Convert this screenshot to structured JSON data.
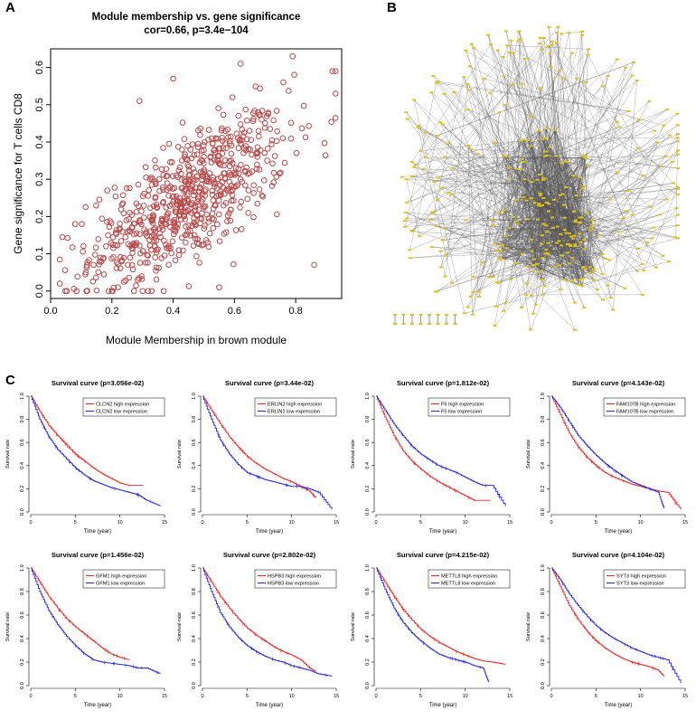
{
  "panels": {
    "a": "A",
    "b": "B",
    "c": "C"
  },
  "colors": {
    "scatter_point": "#b84a4a",
    "high": "#ee2222",
    "low": "#2222dd",
    "node": "#e0c21a",
    "edge": "#555555"
  },
  "chart_data": [
    {
      "type": "scatter",
      "title": "Module membership vs. gene significance",
      "subtitle": "cor=0.66, p=3.4e−104",
      "xlabel": "Module Membership in brown module",
      "ylabel": "Gene significance for  T cells CD8",
      "xlim": [
        0.0,
        0.95
      ],
      "ylim": [
        -0.02,
        0.65
      ],
      "xticks": [
        "0.0",
        "0.2",
        "0.4",
        "0.6",
        "0.8"
      ],
      "yticks": [
        "0.0",
        "0.1",
        "0.2",
        "0.3",
        "0.4",
        "0.5",
        "0.6"
      ],
      "n_points": 700,
      "correlation": 0.66,
      "trend": {
        "intercept": 0.03,
        "slope": 0.48,
        "x_mean": 0.45,
        "x_sd": 0.16
      },
      "sample_points": [
        {
          "x": 0.03,
          "y": 0.02
        },
        {
          "x": 0.08,
          "y": 0.18
        },
        {
          "x": 0.14,
          "y": 0.07
        },
        {
          "x": 0.29,
          "y": 0.51
        },
        {
          "x": 0.4,
          "y": 0.57
        },
        {
          "x": 0.62,
          "y": 0.61
        },
        {
          "x": 0.79,
          "y": 0.63
        },
        {
          "x": 0.92,
          "y": 0.59
        },
        {
          "x": 0.93,
          "y": 0.53
        },
        {
          "x": 0.86,
          "y": 0.07
        },
        {
          "x": 0.55,
          "y": 0.01
        },
        {
          "x": 0.22,
          "y": 0.01
        }
      ]
    },
    {
      "type": "network",
      "panel": "B",
      "description_nodes": 380,
      "isolated_pairs": 8
    },
    {
      "type": "line",
      "title": "Survival curve (p=3.056e-02)",
      "xlabel": "Time (year)",
      "ylabel": "Survival rate",
      "xlim": [
        0,
        15
      ],
      "ylim": [
        0,
        1
      ],
      "xticks": [
        "0",
        "5",
        "10",
        "15"
      ],
      "yticks": [
        "0.0",
        "0.2",
        "0.4",
        "0.6",
        "0.8",
        "1.0"
      ],
      "series": [
        {
          "name": "CLCN2 high expression",
          "color": "high",
          "x": [
            0,
            1,
            2,
            3,
            4,
            5,
            6,
            7,
            8,
            9,
            10,
            11,
            12.6
          ],
          "y": [
            1.0,
            0.87,
            0.75,
            0.66,
            0.58,
            0.5,
            0.44,
            0.38,
            0.33,
            0.29,
            0.25,
            0.23,
            0.23
          ]
        },
        {
          "name": "CLCN2 low expression",
          "color": "low",
          "x": [
            0,
            1,
            2,
            3,
            4,
            5,
            6,
            7,
            8,
            9,
            10,
            11,
            12,
            13,
            14.5
          ],
          "y": [
            1.0,
            0.8,
            0.65,
            0.54,
            0.46,
            0.38,
            0.32,
            0.27,
            0.24,
            0.21,
            0.19,
            0.17,
            0.15,
            0.1,
            0.05
          ]
        }
      ]
    },
    {
      "type": "line",
      "title": "Survival curve (p=3.44e-02)",
      "xlabel": "Time (year)",
      "ylabel": "Survival rate",
      "xlim": [
        0,
        15
      ],
      "ylim": [
        0,
        1
      ],
      "xticks": [
        "0",
        "5",
        "10",
        "15"
      ],
      "yticks": [
        "0.0",
        "0.2",
        "0.4",
        "0.6",
        "0.8",
        "1.0"
      ],
      "series": [
        {
          "name": "ERLIN2 high expression",
          "color": "high",
          "x": [
            0,
            1,
            2,
            3,
            4,
            5,
            6,
            7,
            8,
            9,
            10,
            11,
            12,
            12.7
          ],
          "y": [
            1.0,
            0.88,
            0.76,
            0.65,
            0.56,
            0.48,
            0.42,
            0.37,
            0.33,
            0.29,
            0.26,
            0.22,
            0.18,
            0.12
          ]
        },
        {
          "name": "ERLIN2 low expression",
          "color": "low",
          "x": [
            0,
            1,
            2,
            3,
            4,
            5,
            6,
            7,
            8,
            9,
            10,
            11,
            12,
            13,
            14.5
          ],
          "y": [
            1.0,
            0.8,
            0.62,
            0.5,
            0.41,
            0.34,
            0.31,
            0.28,
            0.26,
            0.24,
            0.22,
            0.22,
            0.2,
            0.17,
            0.02
          ]
        }
      ]
    },
    {
      "type": "line",
      "title": "Survival curve (p=1.812e-02)",
      "xlabel": "Time (year)",
      "ylabel": "Survival rate",
      "xlim": [
        0,
        15
      ],
      "ylim": [
        0,
        1
      ],
      "xticks": [
        "0",
        "5",
        "10",
        "15"
      ],
      "yticks": [
        "0.0",
        "0.2",
        "0.4",
        "0.6",
        "0.8",
        "1.0"
      ],
      "series": [
        {
          "name": "F5 high expression",
          "color": "high",
          "x": [
            0,
            1,
            2,
            3,
            4,
            5,
            6,
            7,
            8,
            9,
            10,
            11,
            12.8
          ],
          "y": [
            1.0,
            0.82,
            0.66,
            0.53,
            0.44,
            0.37,
            0.31,
            0.26,
            0.22,
            0.18,
            0.14,
            0.1,
            0.1
          ]
        },
        {
          "name": "F5 low expression",
          "color": "low",
          "x": [
            0,
            1,
            2,
            3,
            4,
            5,
            6,
            7,
            8,
            9,
            10,
            11,
            12,
            13,
            14.5
          ],
          "y": [
            1.0,
            0.88,
            0.76,
            0.66,
            0.57,
            0.5,
            0.45,
            0.4,
            0.37,
            0.34,
            0.3,
            0.26,
            0.23,
            0.23,
            0.05
          ]
        }
      ]
    },
    {
      "type": "line",
      "title": "Survival curve (p=4.143e-02)",
      "xlabel": "Time (year)",
      "ylabel": "Survival rate",
      "xlim": [
        0,
        15
      ],
      "ylim": [
        0,
        1
      ],
      "xticks": [
        "0",
        "5",
        "10",
        "15"
      ],
      "yticks": [
        "0.0",
        "0.2",
        "0.4",
        "0.6",
        "0.8",
        "1.0"
      ],
      "series": [
        {
          "name": "FAM107B high expression",
          "color": "high",
          "x": [
            0,
            1,
            2,
            3,
            4,
            5,
            6,
            7,
            8,
            9,
            10,
            11,
            12,
            13,
            14.5
          ],
          "y": [
            1.0,
            0.84,
            0.68,
            0.56,
            0.47,
            0.4,
            0.34,
            0.3,
            0.27,
            0.24,
            0.22,
            0.2,
            0.18,
            0.17,
            0.02
          ]
        },
        {
          "name": "FAM107B low expression",
          "color": "low",
          "x": [
            0,
            1,
            2,
            3,
            4,
            5,
            6,
            7,
            8,
            9,
            10,
            11,
            12,
            12.6
          ],
          "y": [
            1.0,
            0.9,
            0.78,
            0.66,
            0.57,
            0.49,
            0.42,
            0.36,
            0.31,
            0.26,
            0.23,
            0.2,
            0.17,
            0.03
          ]
        }
      ]
    },
    {
      "type": "line",
      "title": "Survival curve (p=1.456e-02)",
      "xlabel": "Time (year)",
      "ylabel": "Survival rate",
      "xlim": [
        0,
        15
      ],
      "ylim": [
        0,
        1
      ],
      "xticks": [
        "0",
        "5",
        "10",
        "15"
      ],
      "yticks": [
        "0.0",
        "0.2",
        "0.4",
        "0.6",
        "0.8",
        "1.0"
      ],
      "series": [
        {
          "name": "GFM1 high expression",
          "color": "high",
          "x": [
            0,
            1,
            2,
            3,
            4,
            5,
            6,
            7,
            8,
            9,
            10,
            11
          ],
          "y": [
            1.0,
            0.88,
            0.76,
            0.66,
            0.57,
            0.5,
            0.44,
            0.38,
            0.32,
            0.27,
            0.24,
            0.22
          ]
        },
        {
          "name": "GFM1 low expression",
          "color": "low",
          "x": [
            0,
            1,
            2,
            3,
            4,
            5,
            6,
            7,
            8,
            9,
            10,
            11,
            12,
            13,
            14.5
          ],
          "y": [
            1.0,
            0.8,
            0.64,
            0.52,
            0.42,
            0.34,
            0.27,
            0.22,
            0.2,
            0.19,
            0.18,
            0.17,
            0.15,
            0.15,
            0.1
          ]
        }
      ]
    },
    {
      "type": "line",
      "title": "Survival curve (p=2.802e-02)",
      "xlabel": "Time (year)",
      "ylabel": "Survival rate",
      "xlim": [
        0,
        15
      ],
      "ylim": [
        0,
        1
      ],
      "xticks": [
        "0",
        "5",
        "10",
        "15"
      ],
      "yticks": [
        "0.0",
        "0.2",
        "0.4",
        "0.6",
        "0.8",
        "1.0"
      ],
      "series": [
        {
          "name": "HSPB3 high expression",
          "color": "high",
          "x": [
            0,
            1,
            2,
            3,
            4,
            5,
            6,
            7,
            8,
            9,
            10,
            11,
            12,
            12.7
          ],
          "y": [
            1.0,
            0.88,
            0.76,
            0.66,
            0.57,
            0.49,
            0.43,
            0.38,
            0.33,
            0.29,
            0.26,
            0.22,
            0.15,
            0.12
          ]
        },
        {
          "name": "HSPB3 low expression",
          "color": "low",
          "x": [
            0,
            1,
            2,
            3,
            4,
            5,
            6,
            7,
            8,
            9,
            10,
            11,
            12,
            13,
            14.5
          ],
          "y": [
            1.0,
            0.8,
            0.62,
            0.5,
            0.41,
            0.34,
            0.29,
            0.25,
            0.22,
            0.2,
            0.17,
            0.15,
            0.13,
            0.1,
            0.08
          ]
        }
      ]
    },
    {
      "type": "line",
      "title": "Survival curve (p=4.215e-02)",
      "xlabel": "Time (year)",
      "ylabel": "Survival rate",
      "xlim": [
        0,
        15
      ],
      "ylim": [
        0,
        1
      ],
      "xticks": [
        "0",
        "5",
        "10",
        "15"
      ],
      "yticks": [
        "0.0",
        "0.2",
        "0.4",
        "0.6",
        "0.8",
        "1.0"
      ],
      "series": [
        {
          "name": "METTL8 high expression",
          "color": "high",
          "x": [
            0,
            1,
            2,
            3,
            4,
            5,
            6,
            7,
            8,
            9,
            10,
            11,
            12,
            13,
            14.5
          ],
          "y": [
            1.0,
            0.88,
            0.76,
            0.65,
            0.56,
            0.48,
            0.42,
            0.37,
            0.33,
            0.29,
            0.26,
            0.23,
            0.21,
            0.2,
            0.18
          ]
        },
        {
          "name": "METTL8 low expression",
          "color": "low",
          "x": [
            0,
            1,
            2,
            3,
            4,
            5,
            6,
            7,
            8,
            9,
            10,
            11,
            12,
            12.6
          ],
          "y": [
            1.0,
            0.82,
            0.66,
            0.54,
            0.45,
            0.38,
            0.32,
            0.27,
            0.24,
            0.22,
            0.2,
            0.17,
            0.15,
            0.03
          ]
        }
      ]
    },
    {
      "type": "line",
      "title": "Survival curve (p=4.104e-02)",
      "xlabel": "Time (year)",
      "ylabel": "Survival rate",
      "xlim": [
        0,
        15
      ],
      "ylim": [
        0,
        1
      ],
      "xticks": [
        "0",
        "5",
        "10",
        "15"
      ],
      "yticks": [
        "0.0",
        "0.2",
        "0.4",
        "0.6",
        "0.8",
        "1.0"
      ],
      "series": [
        {
          "name": "SYT3 high expression",
          "color": "high",
          "x": [
            0,
            1,
            2,
            3,
            4,
            5,
            6,
            7,
            8,
            9,
            10,
            11,
            12,
            12.6
          ],
          "y": [
            1.0,
            0.84,
            0.68,
            0.56,
            0.46,
            0.38,
            0.32,
            0.27,
            0.23,
            0.2,
            0.18,
            0.16,
            0.13,
            0.08
          ]
        },
        {
          "name": "SYT3 low expression",
          "color": "low",
          "x": [
            0,
            1,
            2,
            3,
            4,
            5,
            6,
            7,
            8,
            9,
            10,
            11,
            12,
            13,
            14.5
          ],
          "y": [
            1.0,
            0.9,
            0.78,
            0.68,
            0.59,
            0.51,
            0.45,
            0.4,
            0.36,
            0.32,
            0.29,
            0.26,
            0.24,
            0.22,
            0.02
          ]
        }
      ]
    }
  ]
}
